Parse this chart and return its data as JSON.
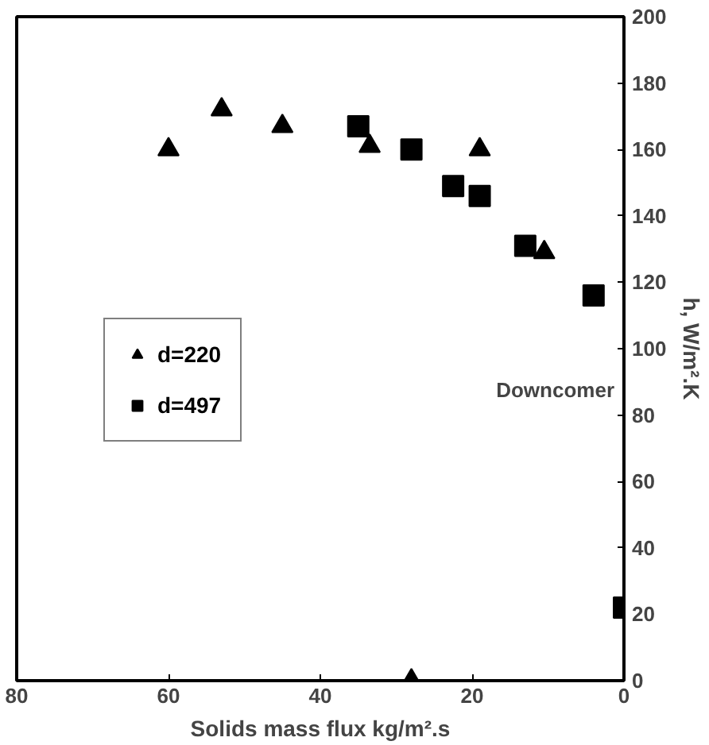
{
  "chart_data": {
    "type": "scatter",
    "xlabel": "Solids mass flux kg/m².s",
    "ylabel": "h, W/m².K",
    "annotations": [
      "Downcomer"
    ],
    "xlim": [
      80,
      0
    ],
    "xticks": [
      80,
      60,
      40,
      20,
      0
    ],
    "ylim": [
      0,
      200
    ],
    "yticks": [
      0,
      20,
      40,
      60,
      80,
      100,
      120,
      140,
      160,
      180,
      200
    ],
    "grid": false,
    "legend": "left",
    "series": [
      {
        "name": "d=220",
        "color": "#000000",
        "marker": "triangle",
        "x": [
          60,
          53,
          45,
          33.5,
          19,
          10.5,
          28
        ],
        "values": [
          160,
          172,
          167,
          161,
          160,
          129,
          0
        ]
      },
      {
        "name": "d=497",
        "color": "#000000",
        "marker": "square",
        "x": [
          35,
          28,
          22.5,
          19,
          13,
          4,
          0
        ],
        "values": [
          167,
          160,
          149,
          146,
          131,
          116,
          22
        ]
      }
    ]
  }
}
